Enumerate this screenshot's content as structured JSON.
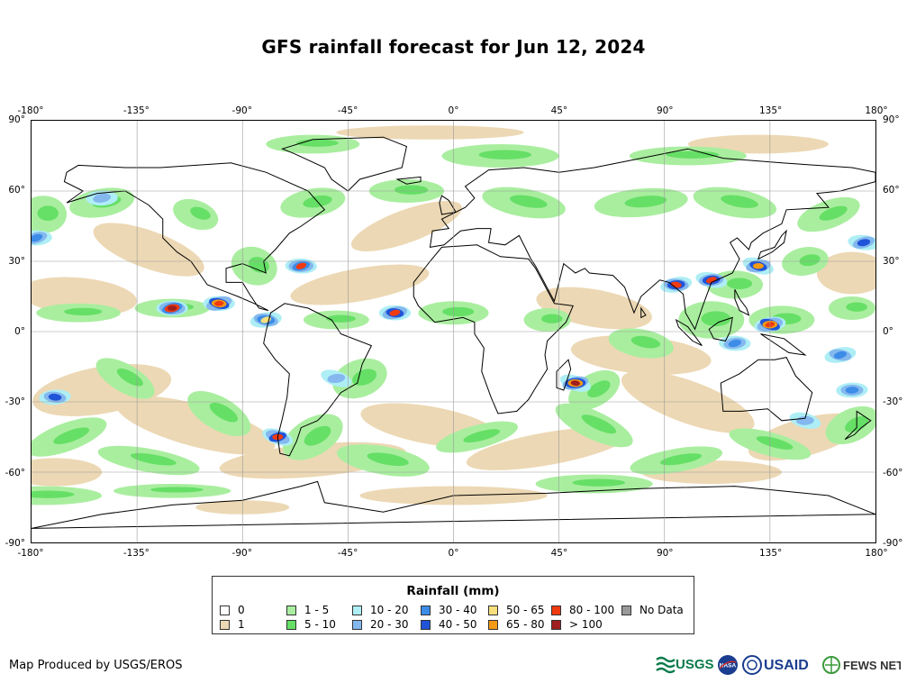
{
  "title": "GFS rainfall forecast for Jun 12, 2024",
  "axes": {
    "lon_ticks": [
      "-180°",
      "-135°",
      "-90°",
      "-45°",
      "0°",
      "45°",
      "90°",
      "135°",
      "180°"
    ],
    "lat_ticks": [
      "90°",
      "60°",
      "30°",
      "0°",
      "-30°",
      "-60°",
      "-90°"
    ],
    "lon_range": [
      -180,
      180
    ],
    "lat_range": [
      -90,
      90
    ],
    "gridlines": true
  },
  "map": {
    "projection": "equirectangular",
    "field": "GFS forecast daily rainfall (mm)",
    "heavy_rain_regions": [
      "ITCZ eastern Pacific",
      "Southeast Asia / Maritime Continent",
      "Madagascar coast",
      "Southern Chile",
      "Northwest Pacific"
    ]
  },
  "legend": {
    "title": "Rainfall (mm)",
    "items": [
      {
        "label": "0",
        "color": "#ffffff"
      },
      {
        "label": "1",
        "color": "#ecd8b4"
      },
      {
        "label": "1 - 5",
        "color": "#a9ee9f"
      },
      {
        "label": "5 - 10",
        "color": "#66df66"
      },
      {
        "label": "10 - 20",
        "color": "#aeeef5"
      },
      {
        "label": "20 - 30",
        "color": "#84b8ee"
      },
      {
        "label": "30 - 40",
        "color": "#3c8ce8"
      },
      {
        "label": "40 - 50",
        "color": "#1f54d8"
      },
      {
        "label": "50 - 65",
        "color": "#f6df7c"
      },
      {
        "label": "65 - 80",
        "color": "#f49a14"
      },
      {
        "label": "80 - 100",
        "color": "#f03a10"
      },
      {
        "label": "> 100",
        "color": "#a01e1e"
      },
      {
        "label": "No Data",
        "color": "#999999"
      }
    ]
  },
  "credit": "Map Produced by USGS/EROS",
  "logos": [
    "USGS",
    "NASA",
    "USAID",
    "FEWS NET"
  ]
}
